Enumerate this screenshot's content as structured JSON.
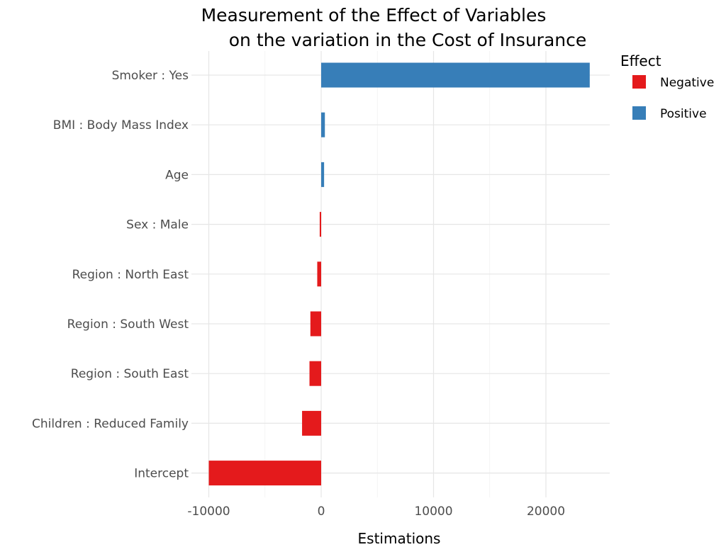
{
  "chart_data": {
    "type": "bar",
    "orientation": "horizontal",
    "title_lines": [
      "Measurement of the Effect of Variables",
      "on the variation in the Cost of Insurance"
    ],
    "xlabel": "Estimations",
    "ylabel": "",
    "xlim": [
      -11000,
      25600
    ],
    "xticks": [
      -10000,
      0,
      10000,
      20000
    ],
    "xtick_labels": [
      "-10000",
      "0",
      "10000",
      "20000"
    ],
    "categories": [
      "Smoker : Yes",
      "BMI : Body Mass Index",
      "Age",
      "Sex : Male",
      "Region : North East",
      "Region : South West",
      "Region : South East",
      "Children : Reduced Family",
      "Intercept"
    ],
    "values": [
      23900,
      330,
      260,
      -130,
      -350,
      -960,
      -1040,
      -1700,
      -10000
    ],
    "effect": [
      "Positive",
      "Positive",
      "Positive",
      "Negative",
      "Negative",
      "Negative",
      "Negative",
      "Negative",
      "Negative"
    ],
    "legend": {
      "title": "Effect",
      "position": "right",
      "entries": [
        {
          "label": "Negative",
          "color": "#e41a1c"
        },
        {
          "label": "Positive",
          "color": "#377eb8"
        }
      ]
    },
    "grid": true
  }
}
